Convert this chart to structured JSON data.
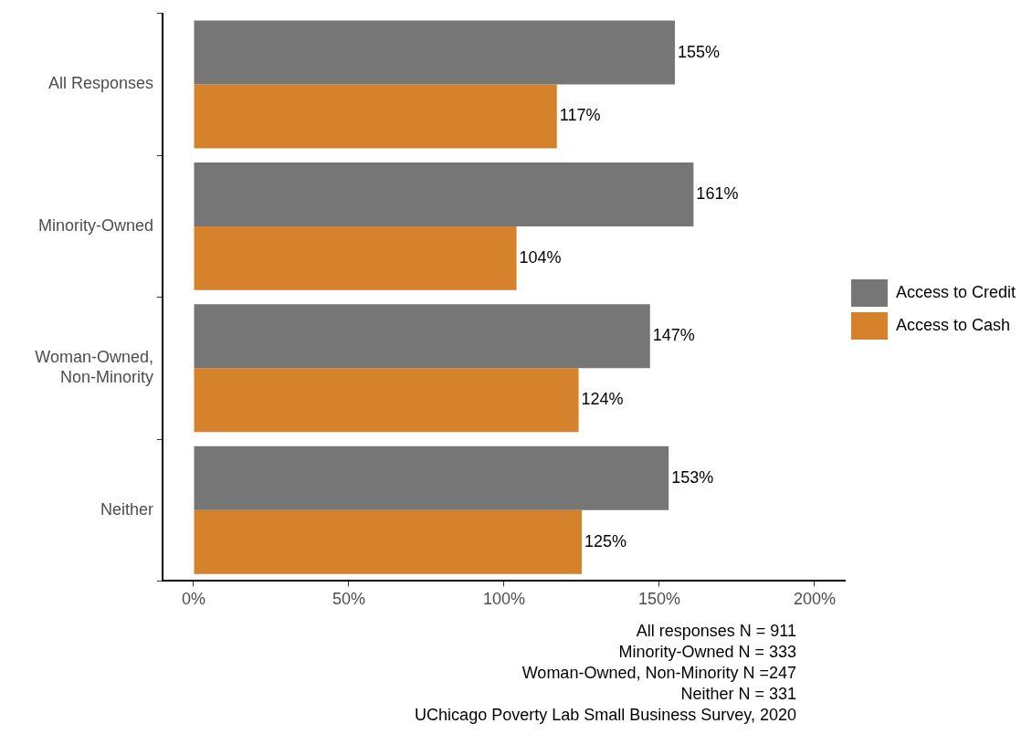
{
  "chart_data": {
    "type": "bar",
    "orientation": "horizontal",
    "categories": [
      "All Responses",
      "Minority-Owned",
      "Woman-Owned, Non-Minority",
      "Neither"
    ],
    "series": [
      {
        "name": "Access to Credit",
        "color": "#767676",
        "values": [
          155,
          161,
          147,
          153
        ],
        "value_labels": [
          "155%",
          "161%",
          "147%",
          "153%"
        ]
      },
      {
        "name": "Access to Cash",
        "color": "#d6812c",
        "values": [
          117,
          104,
          124,
          125
        ],
        "value_labels": [
          "117%",
          "104%",
          "124%",
          "125%"
        ]
      }
    ],
    "xlim": [
      -10,
      210
    ],
    "xticks": [
      {
        "value": 0,
        "label": "0%"
      },
      {
        "value": 50,
        "label": "50%"
      },
      {
        "value": 100,
        "label": "100%"
      },
      {
        "value": 150,
        "label": "150%"
      },
      {
        "value": 200,
        "label": "200%"
      }
    ],
    "grid": false,
    "legend": "right",
    "annotations": [
      "All responses N = 911",
      "Minority-Owned N = 333",
      "Woman-Owned, Non-Minority N =247",
      "Neither N = 331",
      "UChicago Poverty Lab Small Business Survey, 2020"
    ]
  }
}
